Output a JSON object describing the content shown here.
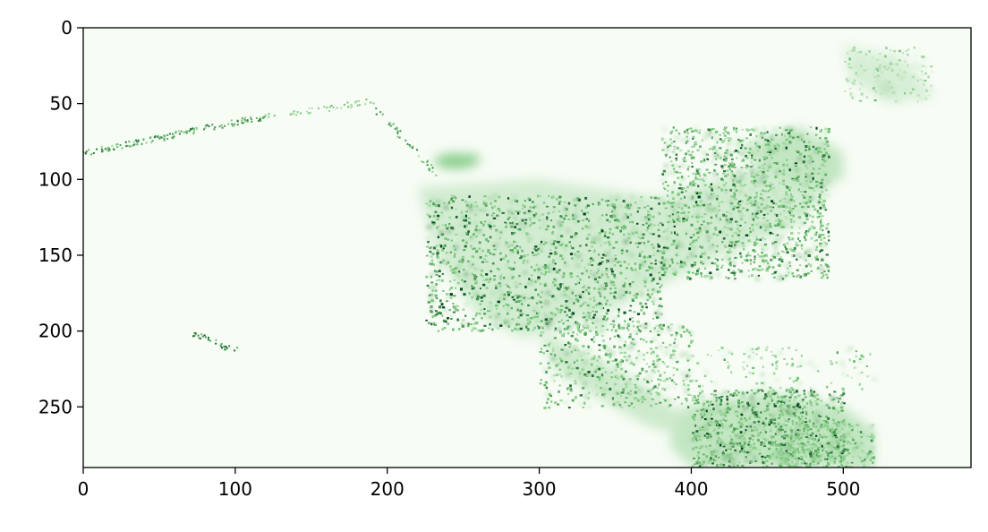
{
  "chart_data": {
    "type": "heatmap",
    "title": "",
    "xlabel": "",
    "ylabel": "",
    "colormap": "Greens",
    "xlim": [
      0,
      584
    ],
    "ylim": [
      290,
      0
    ],
    "xticks": [
      0,
      100,
      200,
      300,
      400,
      500
    ],
    "yticks": [
      0,
      50,
      100,
      150,
      200,
      250
    ],
    "xtick_labels": [
      "0",
      "100",
      "200",
      "300",
      "400",
      "500"
    ],
    "ytick_labels": [
      "0",
      "50",
      "100",
      "150",
      "200",
      "250"
    ],
    "grid": false,
    "legend": "none",
    "colors": {
      "low": "#f7fcf5",
      "mid": "#74c476",
      "high": "#00441b"
    }
  }
}
